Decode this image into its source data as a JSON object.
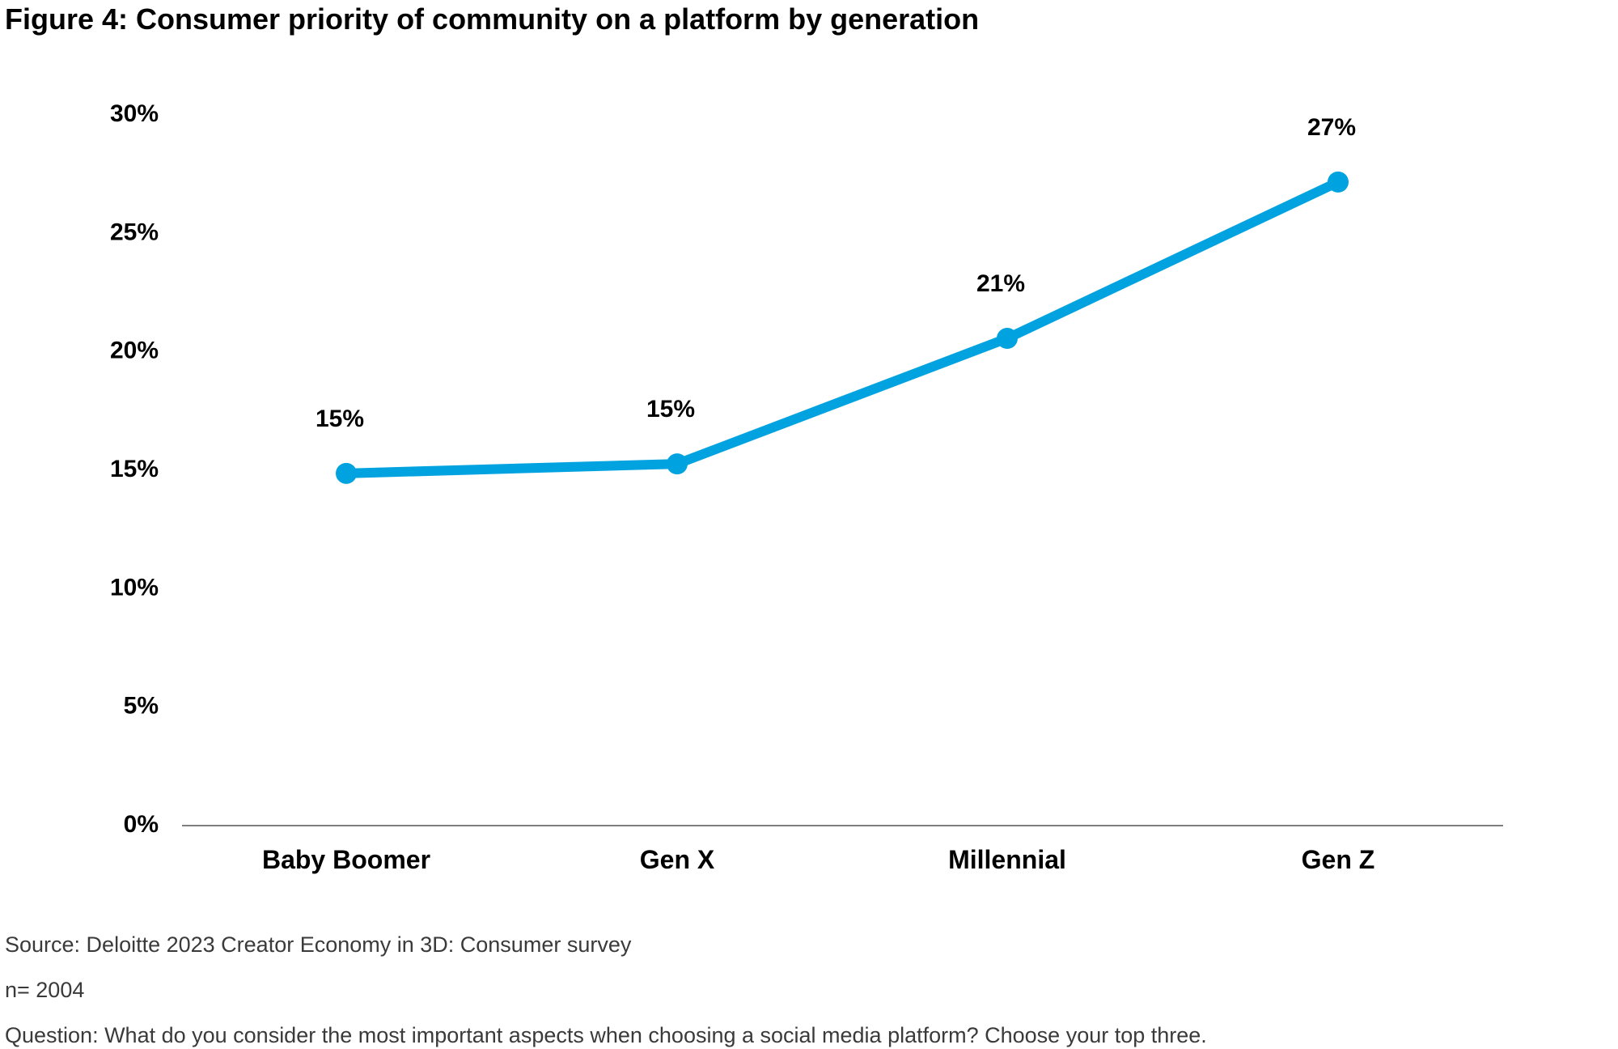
{
  "figure_title": "Figure 4: Consumer priority of community on a platform by generation",
  "chart_data": {
    "type": "line",
    "title": "Figure 4: Consumer priority of community on a platform by generation",
    "xlabel": "",
    "ylabel": "",
    "categories": [
      "Baby Boomer",
      "Gen X",
      "Millennial",
      "Gen Z"
    ],
    "series": [
      {
        "values": [
          14.8,
          15.2,
          20.5,
          27.1
        ],
        "data_labels": [
          "15%",
          "15%",
          "21%",
          "27%"
        ],
        "color": "#00A3E0"
      }
    ],
    "ylim": [
      0,
      30
    ],
    "yticks": [
      0,
      5,
      10,
      15,
      20,
      25,
      30
    ],
    "ytick_labels": [
      "0%",
      "5%",
      "10%",
      "15%",
      "20%",
      "25%",
      "30%"
    ],
    "grid": false,
    "legend": "none",
    "axis_color": "#7f7f7f"
  },
  "notes": {
    "source": "Source: Deloitte 2023 Creator Economy in 3D: Consumer survey",
    "n": "n= 2004",
    "question": "Question: What do you consider the most important aspects when choosing a social media platform? Choose your top three."
  }
}
